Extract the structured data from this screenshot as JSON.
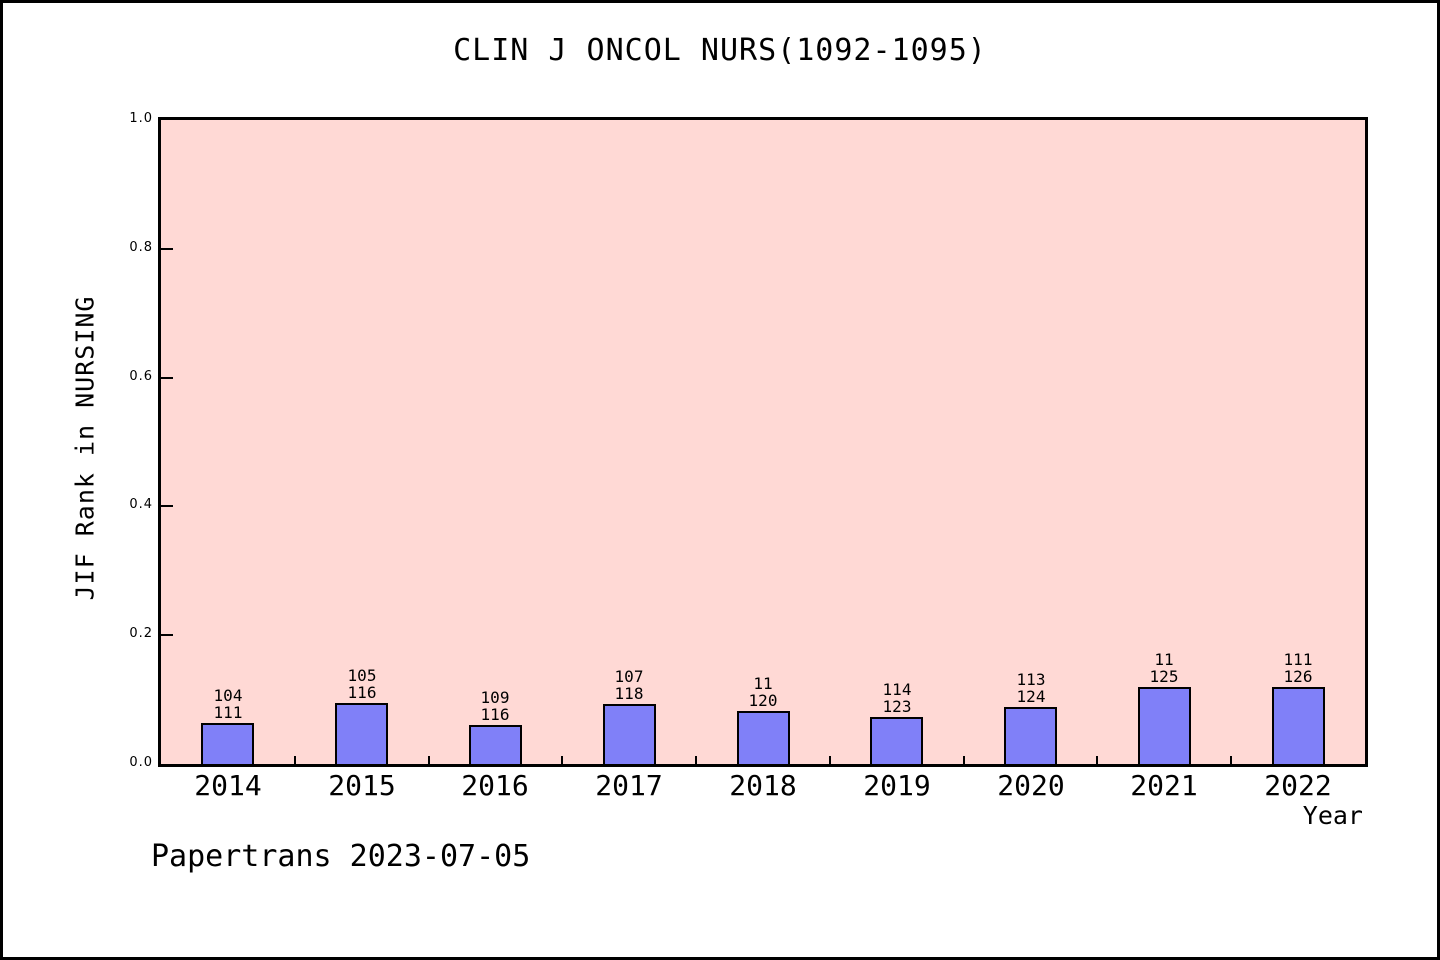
{
  "chart_data": {
    "type": "bar",
    "title": "CLIN J ONCOL NURS(1092-1095)",
    "xlabel": "Year",
    "ylabel": "JIF Rank in NURSING",
    "categories": [
      "2014",
      "2015",
      "2016",
      "2017",
      "2018",
      "2019",
      "2020",
      "2021",
      "2022"
    ],
    "values": [
      0.063,
      0.095,
      0.06,
      0.093,
      0.083,
      0.073,
      0.089,
      0.12,
      0.119
    ],
    "bar_labels": [
      [
        "104",
        "111"
      ],
      [
        "105",
        "116"
      ],
      [
        "109",
        "116"
      ],
      [
        "107",
        "118"
      ],
      [
        "11",
        "120"
      ],
      [
        "114",
        "123"
      ],
      [
        "113",
        "124"
      ],
      [
        "11",
        "125"
      ],
      [
        "111",
        "126"
      ]
    ],
    "ylim": [
      0.0,
      1.0
    ],
    "yticks": [
      0.0,
      0.2,
      0.4,
      0.6,
      0.8,
      1.0
    ],
    "ytick_labels": [
      "0.0",
      "0.2",
      "0.4",
      "0.6",
      "0.8",
      "1.0"
    ],
    "grid": false,
    "legend": null,
    "colors": {
      "bar_fill": "#8080f8",
      "bar_border": "#000000",
      "plot_background": "#ffd9d5",
      "page_background": "#ffffff",
      "text": "#000000"
    }
  },
  "footer": {
    "note": "Papertrans 2023-07-05"
  }
}
